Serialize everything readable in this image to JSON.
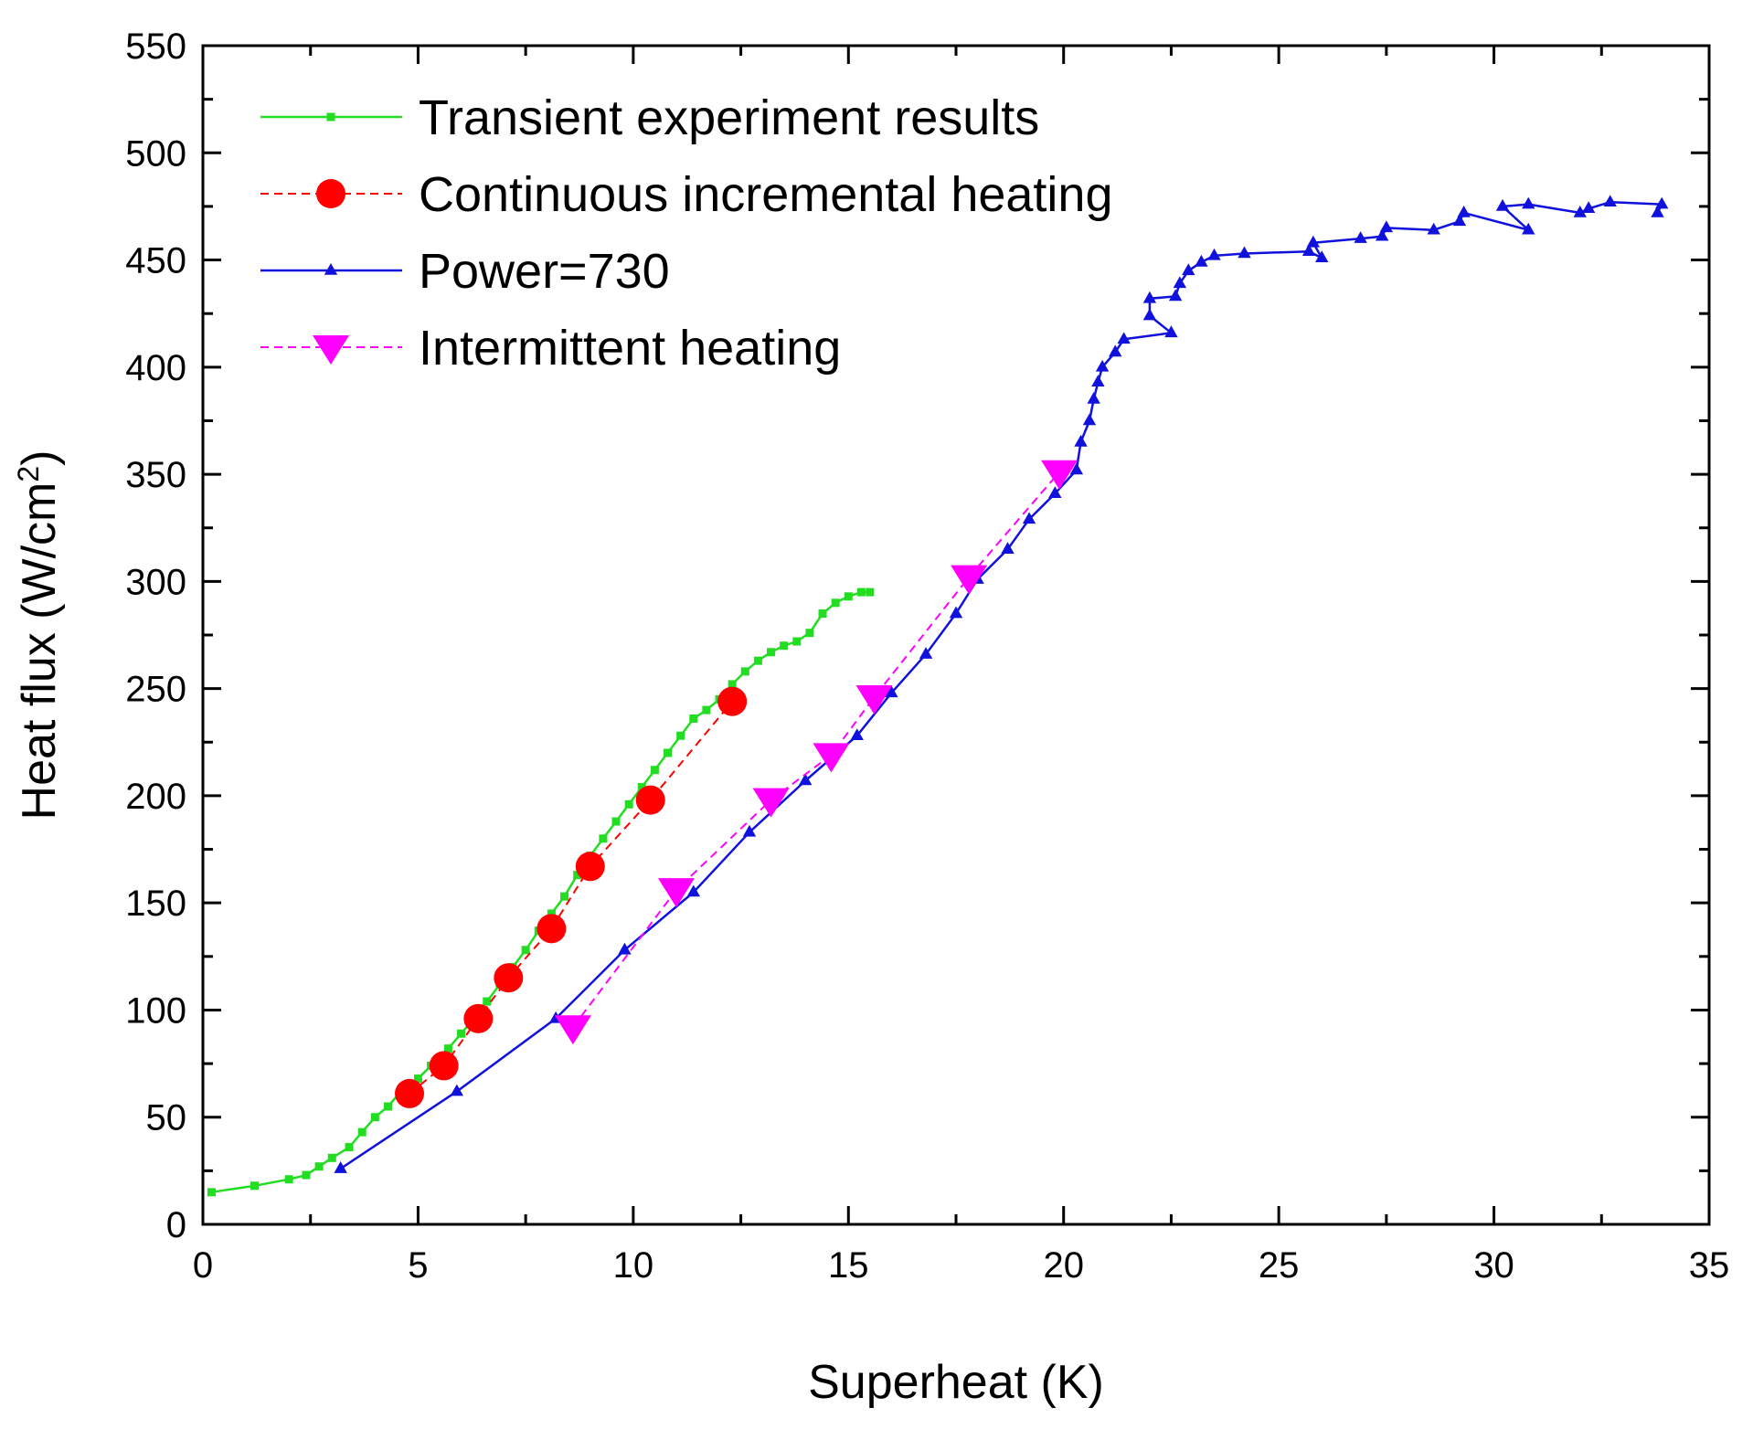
{
  "chart_data": {
    "type": "line",
    "xlabel": "Superheat (K)",
    "ylabel_main": "Heat flux (W/cm",
    "ylabel_sup": "2",
    "ylabel_close": ")",
    "xlim": [
      0,
      35
    ],
    "ylim": [
      0,
      550
    ],
    "xticks": [
      "0",
      "5",
      "10",
      "15",
      "20",
      "25",
      "30",
      "35"
    ],
    "yticks": [
      "0",
      "50",
      "100",
      "150",
      "200",
      "250",
      "300",
      "350",
      "400",
      "450",
      "500",
      "550"
    ],
    "grid": false,
    "legend_position": "top-left",
    "series": [
      {
        "name": "Transient experiment results",
        "color": "#22dd22",
        "marker": "square",
        "style": "solid",
        "x": [
          0.2,
          1.2,
          2.0,
          2.4,
          2.7,
          3.0,
          3.4,
          3.7,
          4.0,
          4.3,
          4.6,
          5.0,
          5.3,
          5.7,
          6.0,
          6.3,
          6.6,
          6.9,
          7.2,
          7.5,
          7.8,
          8.1,
          8.4,
          8.7,
          9.0,
          9.3,
          9.6,
          9.9,
          10.2,
          10.5,
          10.8,
          11.1,
          11.4,
          11.7,
          12.0,
          12.3,
          12.6,
          12.9,
          13.2,
          13.5,
          13.8,
          14.1,
          14.4,
          14.7,
          15.0,
          15.3,
          15.5
        ],
        "y": [
          15,
          18,
          21,
          23,
          27,
          31,
          36,
          43,
          50,
          55,
          62,
          68,
          74,
          82,
          89,
          96,
          104,
          112,
          120,
          128,
          137,
          145,
          153,
          163,
          172,
          180,
          188,
          196,
          204,
          212,
          220,
          228,
          236,
          240,
          245,
          252,
          258,
          263,
          267,
          270,
          272,
          276,
          285,
          290,
          293,
          295,
          295
        ]
      },
      {
        "name": "Continuous incremental heating",
        "color": "#ff0000",
        "marker": "circle",
        "style": "dashed",
        "x": [
          4.8,
          5.6,
          6.4,
          7.1,
          8.1,
          9.0,
          10.4,
          12.3
        ],
        "y": [
          61,
          74,
          96,
          115,
          138,
          167,
          198,
          244
        ]
      },
      {
        "name": "Power=730",
        "color": "#1111dd",
        "marker": "triangle-up",
        "style": "solid",
        "x": [
          3.2,
          5.9,
          8.2,
          9.8,
          11.4,
          12.7,
          14.0,
          15.2,
          16.0,
          16.8,
          17.5,
          18.0,
          18.7,
          19.2,
          19.8,
          20.3,
          20.4,
          20.6,
          20.7,
          20.8,
          20.9,
          21.2,
          21.4,
          22.5,
          22.0,
          22.0,
          22.6,
          22.7,
          22.9,
          23.2,
          23.5,
          24.2,
          25.7,
          26.0,
          25.8,
          26.9,
          27.4,
          27.5,
          28.6,
          29.2,
          29.3,
          30.8,
          30.2,
          30.8,
          32.0,
          32.2,
          32.7,
          33.9,
          33.8
        ],
        "y": [
          26,
          62,
          96,
          128,
          155,
          183,
          207,
          228,
          248,
          266,
          285,
          301,
          315,
          329,
          341,
          352,
          365,
          375,
          385,
          393,
          400,
          407,
          413,
          416,
          424,
          432,
          433,
          439,
          445,
          449,
          452,
          453,
          454,
          451,
          458,
          460,
          461,
          465,
          464,
          468,
          472,
          464,
          475,
          476,
          472,
          474,
          477,
          476,
          472
        ]
      },
      {
        "name": "Intermittent heating",
        "color": "#ff00ff",
        "marker": "triangle-down",
        "style": "dashed",
        "x": [
          8.6,
          11.0,
          13.2,
          14.6,
          15.6,
          17.8,
          19.9
        ],
        "y": [
          92,
          156,
          198,
          219,
          246,
          302,
          351
        ]
      }
    ]
  }
}
